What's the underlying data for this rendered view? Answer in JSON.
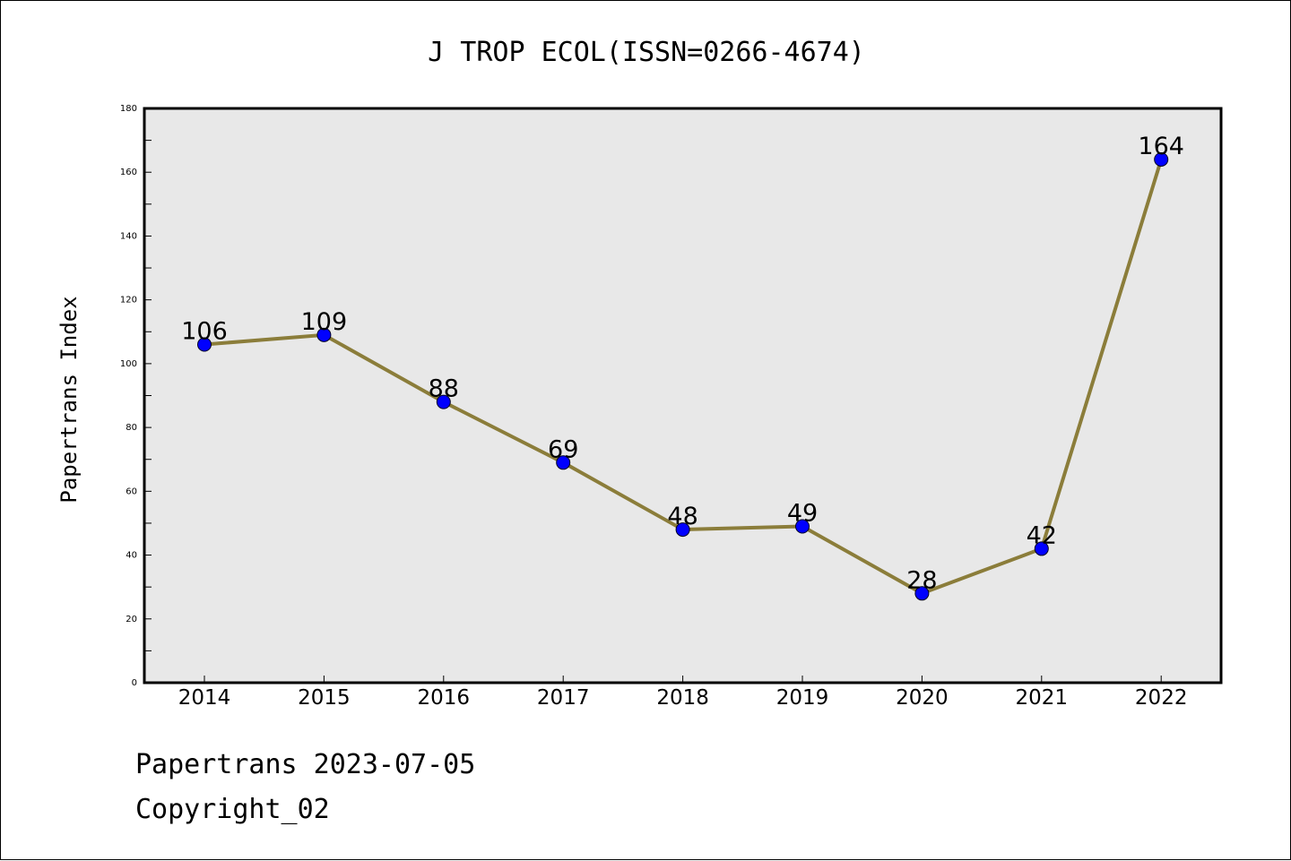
{
  "chart_data": {
    "type": "line",
    "title": "J TROP ECOL(ISSN=0266-4674)",
    "xlabel": "",
    "ylabel": "Papertrans Index",
    "categories": [
      "2014",
      "2015",
      "2016",
      "2017",
      "2018",
      "2019",
      "2020",
      "2021",
      "2022"
    ],
    "values": [
      106,
      109,
      88,
      69,
      48,
      49,
      28,
      42,
      164
    ],
    "data_labels": [
      "106",
      "109",
      "88",
      "69",
      "48",
      "49",
      "28",
      "42",
      "164"
    ],
    "ylim": [
      0,
      180
    ],
    "yticks": [
      0,
      20,
      40,
      60,
      80,
      100,
      120,
      140,
      160,
      180
    ],
    "ytick_labels": [
      "0",
      "20",
      "40",
      "60",
      "80",
      "100",
      "120",
      "140",
      "160",
      "180"
    ],
    "grid": false,
    "legend": "none",
    "line_color": "#8b7d3a",
    "marker_color": "#0000ff",
    "plot_background": "#e8e8e8"
  },
  "footer": {
    "date_line": "Papertrans 2023-07-05",
    "copyright_line": "Copyright_02"
  }
}
